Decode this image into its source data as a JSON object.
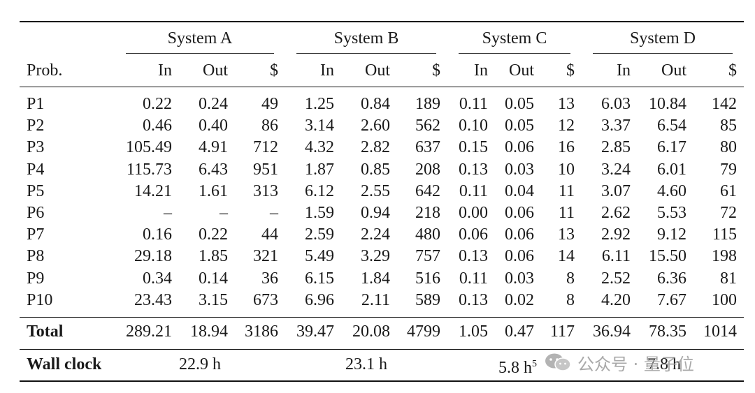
{
  "groups": [
    "System A",
    "System B",
    "System C",
    "System D"
  ],
  "col_headers": {
    "prob": "Prob.",
    "per_system": [
      "In",
      "Out",
      "$"
    ]
  },
  "rows": [
    {
      "label": "P1",
      "values": [
        "0.22",
        "0.24",
        "49",
        "1.25",
        "0.84",
        "189",
        "0.11",
        "0.05",
        "13",
        "6.03",
        "10.84",
        "142"
      ]
    },
    {
      "label": "P2",
      "values": [
        "0.46",
        "0.40",
        "86",
        "3.14",
        "2.60",
        "562",
        "0.10",
        "0.05",
        "12",
        "3.37",
        "6.54",
        "85"
      ]
    },
    {
      "label": "P3",
      "values": [
        "105.49",
        "4.91",
        "712",
        "4.32",
        "2.82",
        "637",
        "0.15",
        "0.06",
        "16",
        "2.85",
        "6.17",
        "80"
      ]
    },
    {
      "label": "P4",
      "values": [
        "115.73",
        "6.43",
        "951",
        "1.87",
        "0.85",
        "208",
        "0.13",
        "0.03",
        "10",
        "3.24",
        "6.01",
        "79"
      ]
    },
    {
      "label": "P5",
      "values": [
        "14.21",
        "1.61",
        "313",
        "6.12",
        "2.55",
        "642",
        "0.11",
        "0.04",
        "11",
        "3.07",
        "4.60",
        "61"
      ]
    },
    {
      "label": "P6",
      "values": [
        "–",
        "–",
        "–",
        "1.59",
        "0.94",
        "218",
        "0.00",
        "0.06",
        "11",
        "2.62",
        "5.53",
        "72"
      ]
    },
    {
      "label": "P7",
      "values": [
        "0.16",
        "0.22",
        "44",
        "2.59",
        "2.24",
        "480",
        "0.06",
        "0.06",
        "13",
        "2.92",
        "9.12",
        "115"
      ]
    },
    {
      "label": "P8",
      "values": [
        "29.18",
        "1.85",
        "321",
        "5.49",
        "3.29",
        "757",
        "0.13",
        "0.06",
        "14",
        "6.11",
        "15.50",
        "198"
      ]
    },
    {
      "label": "P9",
      "values": [
        "0.34",
        "0.14",
        "36",
        "6.15",
        "1.84",
        "516",
        "0.11",
        "0.03",
        "8",
        "2.52",
        "6.36",
        "81"
      ]
    },
    {
      "label": "P10",
      "values": [
        "23.43",
        "3.15",
        "673",
        "6.96",
        "2.11",
        "589",
        "0.13",
        "0.02",
        "8",
        "4.20",
        "7.67",
        "100"
      ]
    }
  ],
  "total": {
    "label": "Total",
    "values": [
      "289.21",
      "18.94",
      "3186",
      "39.47",
      "20.08",
      "4799",
      "1.05",
      "0.47",
      "117",
      "36.94",
      "78.35",
      "1014"
    ]
  },
  "wall_clock": {
    "label": "Wall clock",
    "values": [
      "22.9 h",
      "23.1 h",
      "5.8 h",
      "7.8 h"
    ],
    "footnote_c": "5"
  },
  "watermark": {
    "text": "公众号 · 量子位",
    "icon": "wechat-icon"
  }
}
